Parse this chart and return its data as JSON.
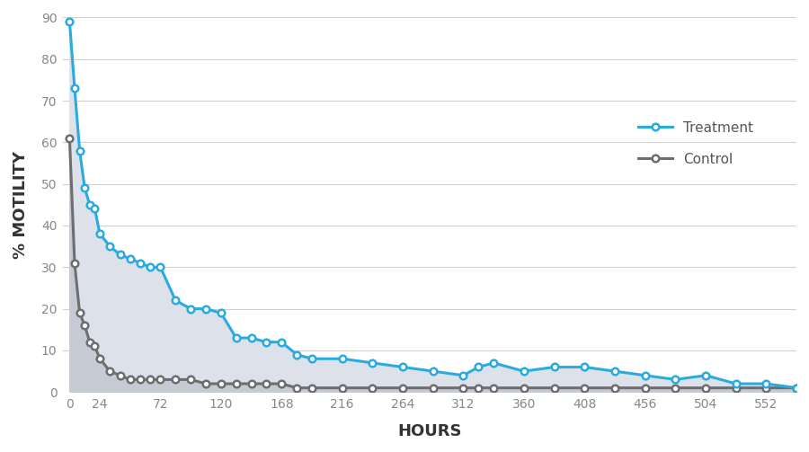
{
  "xlabel": "HOURS",
  "ylabel": "% MOTILITY",
  "xlim": [
    -5,
    576
  ],
  "ylim": [
    0,
    90
  ],
  "yticks": [
    0,
    10,
    20,
    30,
    40,
    50,
    60,
    70,
    80,
    90
  ],
  "xticks": [
    0,
    24,
    72,
    120,
    168,
    216,
    264,
    312,
    360,
    408,
    456,
    504,
    552
  ],
  "treatment_x": [
    0,
    4,
    8,
    12,
    16,
    20,
    24,
    32,
    40,
    48,
    56,
    64,
    72,
    84,
    96,
    108,
    120,
    132,
    144,
    156,
    168,
    180,
    192,
    216,
    240,
    264,
    288,
    312,
    324,
    336,
    360,
    384,
    408,
    432,
    456,
    480,
    504,
    528,
    552,
    576
  ],
  "treatment_y": [
    89,
    73,
    58,
    49,
    45,
    44,
    38,
    35,
    33,
    32,
    31,
    30,
    30,
    22,
    20,
    20,
    19,
    13,
    13,
    12,
    12,
    9,
    8,
    8,
    7,
    6,
    5,
    4,
    6,
    7,
    5,
    6,
    6,
    5,
    4,
    3,
    4,
    2,
    2,
    1
  ],
  "control_x": [
    0,
    4,
    8,
    12,
    16,
    20,
    24,
    32,
    40,
    48,
    56,
    64,
    72,
    84,
    96,
    108,
    120,
    132,
    144,
    156,
    168,
    180,
    192,
    216,
    240,
    264,
    288,
    312,
    324,
    336,
    360,
    384,
    408,
    432,
    456,
    480,
    504,
    528,
    552,
    576
  ],
  "control_y": [
    61,
    31,
    19,
    16,
    12,
    11,
    8,
    5,
    4,
    3,
    3,
    3,
    3,
    3,
    3,
    2,
    2,
    2,
    2,
    2,
    2,
    1,
    1,
    1,
    1,
    1,
    1,
    1,
    1,
    1,
    1,
    1,
    1,
    1,
    1,
    1,
    1,
    1,
    1,
    1
  ],
  "treatment_color": "#29ABE2",
  "control_color": "#6d6e71",
  "fill_treatment": "#dde2ea",
  "fill_control": "#c5cad4",
  "grid_color": "#d0d0d0",
  "marker_face": "#ffffff",
  "bg_color": "#ffffff",
  "fig_bg": "#ffffff"
}
